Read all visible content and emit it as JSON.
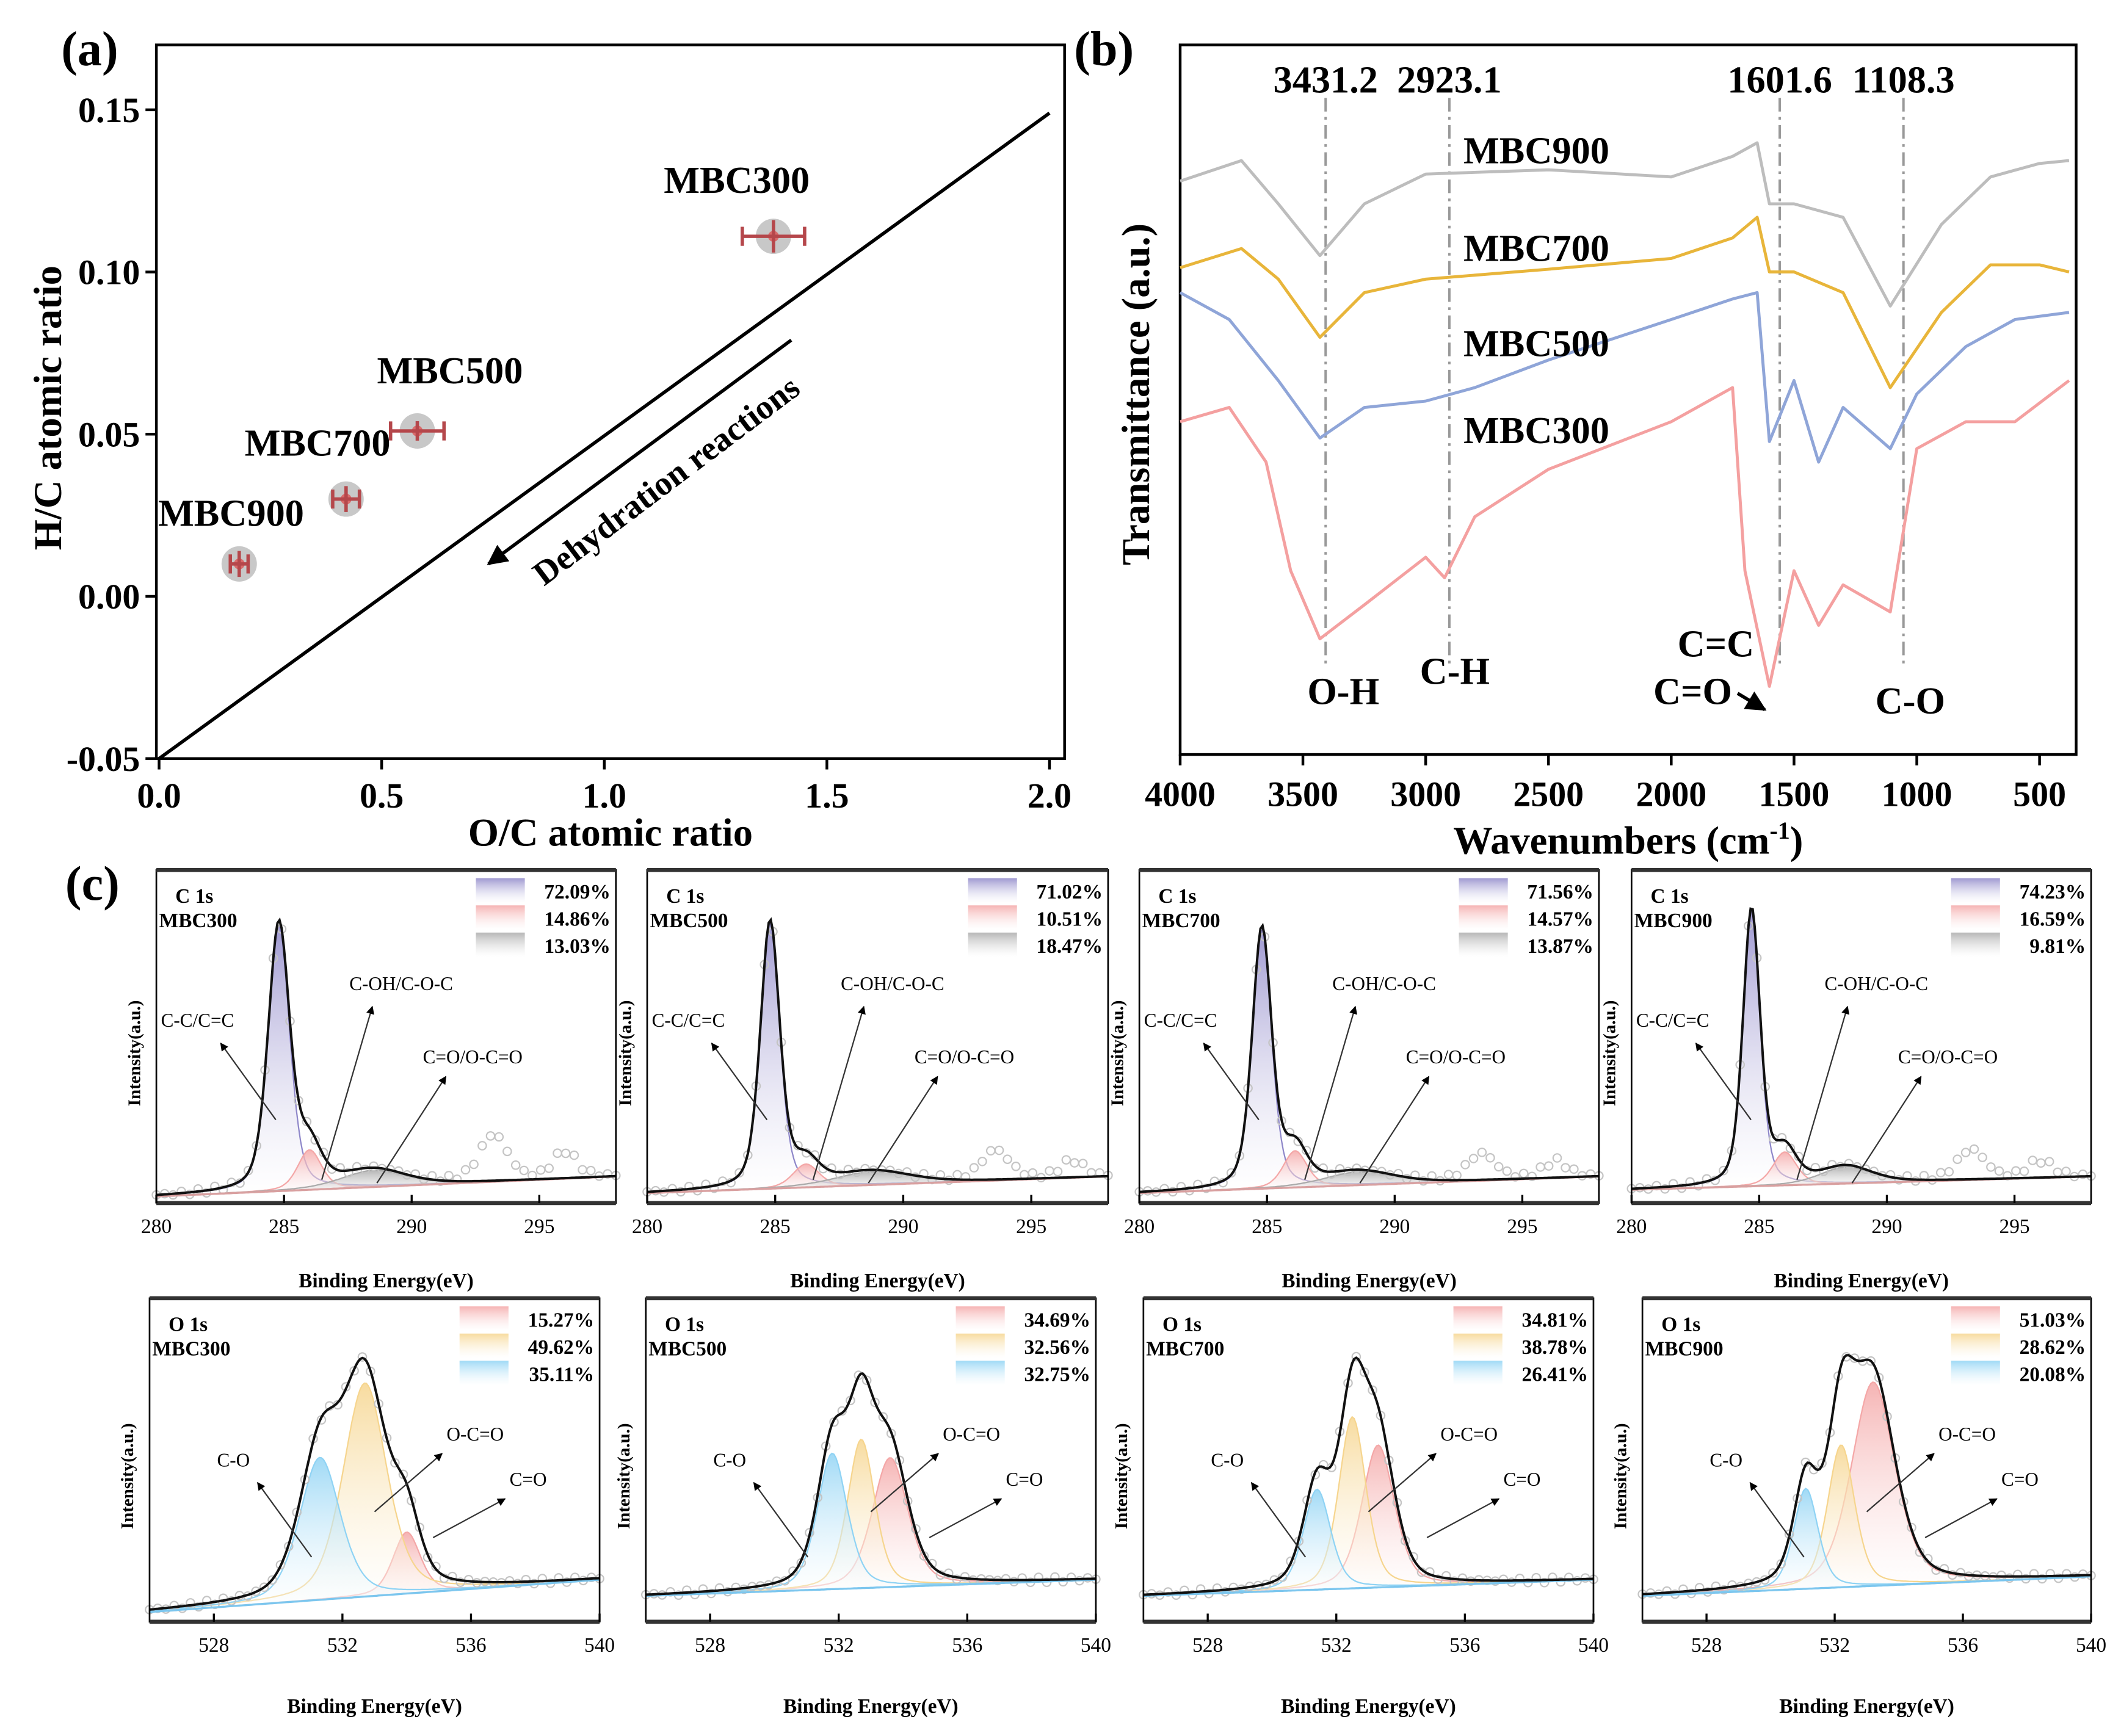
{
  "chart_data": [
    {
      "type": "scatter",
      "panel_label": "(a)",
      "xlabel": "O/C atomic ratio",
      "ylabel": "H/C atomic ratio",
      "xlim": [
        0,
        2.04
      ],
      "ylim": [
        -0.05,
        0.17
      ],
      "xticks": [
        0,
        0.5,
        1.0,
        1.5,
        2.0
      ],
      "xtick_labels": [
        "0.0",
        "0.5",
        "1.0",
        "1.5",
        "2.0"
      ],
      "yticks": [
        -0.05,
        0,
        0.05,
        0.1,
        0.15
      ],
      "ytick_labels": [
        "-0.05",
        "0.00",
        "0.05",
        "0.10",
        "0.15"
      ],
      "points": [
        {
          "label": "MBC300",
          "x": 1.38,
          "y": 0.111,
          "xerr": 0.07,
          "yerr": 0.005
        },
        {
          "label": "MBC500",
          "x": 0.58,
          "y": 0.051,
          "xerr": 0.06,
          "yerr": 0.003
        },
        {
          "label": "MBC700",
          "x": 0.42,
          "y": 0.03,
          "xerr": 0.03,
          "yerr": 0.004
        },
        {
          "label": "MBC900",
          "x": 0.18,
          "y": 0.01,
          "xerr": 0.02,
          "yerr": 0.004
        }
      ],
      "reference_line": [
        [
          0,
          -0.05
        ],
        [
          2.0,
          0.149
        ]
      ],
      "arrow": {
        "from": [
          1.42,
          0.079
        ],
        "to": [
          0.74,
          0.01
        ],
        "text": "Dehydration reactions"
      },
      "colors": {
        "marker": "#c8c8c8",
        "center": "#d96b6b",
        "errorbar": "#b5474b"
      }
    },
    {
      "type": "line",
      "panel_label": "(b)",
      "xlabel": "Wavenumbers (cm",
      "xlabel_sup": "-1",
      "xlabel_end": ")",
      "ylabel": "Transmittance (a.u.)",
      "xlim": [
        4000,
        350
      ],
      "ylim": [
        0,
        100
      ],
      "xticks": [
        4000,
        3500,
        3000,
        2500,
        2000,
        1500,
        1000,
        500
      ],
      "xtick_labels": [
        "4000",
        "3500",
        "3000",
        "2500",
        "2000",
        "1500",
        "1000",
        "500"
      ],
      "peaks": [
        {
          "x": 3431.2,
          "label": "3431.2"
        },
        {
          "x": 2923.1,
          "label": "2923.1"
        },
        {
          "x": 1601.6,
          "label": "1601.6"
        },
        {
          "x": 1108.3,
          "label": "1108.3"
        }
      ],
      "bond_labels": [
        "O-H",
        "C-H",
        "C=C",
        "C=O",
        "C-O"
      ],
      "series": [
        {
          "name": "MBC900",
          "color": "#bdbdbd",
          "x": [
            4000,
            3750,
            3600,
            3431,
            3250,
            3000,
            2500,
            2000,
            1750,
            1650,
            1600,
            1500,
            1300,
            1108,
            900,
            700,
            500,
            380
          ],
          "y": [
            80.8,
            83.7,
            77.6,
            70.3,
            77.6,
            81.8,
            82.4,
            81.4,
            84.3,
            86.2,
            77.6,
            77.6,
            75.7,
            63.2,
            74.7,
            81.4,
            83.3,
            83.7
          ]
        },
        {
          "name": "MBC700",
          "color": "#e8b53a",
          "x": [
            4000,
            3750,
            3600,
            3431,
            3250,
            3000,
            2500,
            2000,
            1750,
            1650,
            1600,
            1500,
            1300,
            1108,
            900,
            700,
            500,
            380
          ],
          "y": [
            68.6,
            71.3,
            67.0,
            58.8,
            65.1,
            67.0,
            68.4,
            69.9,
            72.8,
            75.7,
            68.0,
            68.0,
            65.1,
            51.7,
            62.3,
            69.0,
            69.0,
            68.0
          ]
        },
        {
          "name": "MBC500",
          "color": "#8fa5d8",
          "x": [
            4000,
            3800,
            3600,
            3431,
            3250,
            3000,
            2800,
            2500,
            2000,
            1750,
            1650,
            1600,
            1500,
            1400,
            1300,
            1108,
            1000,
            800,
            600,
            380
          ],
          "y": [
            65.1,
            61.3,
            52.7,
            44.6,
            48.9,
            49.8,
            51.7,
            55.6,
            61.3,
            64.2,
            65.1,
            44.1,
            52.7,
            41.2,
            48.9,
            43.1,
            50.8,
            57.5,
            61.3,
            62.3
          ]
        },
        {
          "name": "MBC300",
          "color": "#f4a0a0",
          "x": [
            4000,
            3800,
            3650,
            3550,
            3431,
            3250,
            3000,
            2923,
            2800,
            2500,
            2000,
            1750,
            1700,
            1600,
            1500,
            1400,
            1300,
            1108,
            1000,
            800,
            600,
            380
          ],
          "y": [
            46.9,
            48.9,
            41.2,
            25.9,
            16.3,
            21.1,
            27.8,
            24.9,
            33.5,
            40.2,
            46.9,
            51.7,
            25.9,
            9.6,
            25.9,
            18.2,
            23.9,
            20.1,
            43.1,
            46.9,
            46.9,
            52.7
          ]
        }
      ]
    },
    {
      "type": "line",
      "panel_label": "(c)",
      "title": "C 1s",
      "sample": "MBC300",
      "xlabel": "Binding Energy(eV)",
      "ylabel": "Intensity(a.u.)",
      "xlim": [
        280,
        298
      ],
      "xticks": [
        280,
        285,
        290,
        295
      ],
      "xtick_labels": [
        "280",
        "285",
        "290",
        "295"
      ],
      "ylim": [
        0,
        1
      ],
      "baseline": [
        0.02,
        0.08
      ],
      "components": [
        {
          "label": "C-C/C=C",
          "center": 284.8,
          "fwhm": 1.0,
          "height": 0.8,
          "color": "#8e87c9",
          "percent": "72.09%"
        },
        {
          "label": "C-OH/C-O-C",
          "center": 286.0,
          "fwhm": 1.1,
          "height": 0.12,
          "color": "#f4a7a7",
          "percent": "14.86%"
        },
        {
          "label": "C=O/O-C=O",
          "center": 288.5,
          "fwhm": 3.0,
          "height": 0.05,
          "color": "#aaaaaa",
          "percent": "13.03%"
        }
      ],
      "satellites": [
        {
          "center": 293.2,
          "fwhm": 1.3,
          "height": 0.14
        },
        {
          "center": 296.0,
          "fwhm": 1.1,
          "height": 0.08
        }
      ]
    },
    {
      "type": "line",
      "title": "C 1s",
      "sample": "MBC500",
      "xlabel": "Binding Energy(eV)",
      "ylabel": "Intensity(a.u.)",
      "xlim": [
        280,
        298
      ],
      "xticks": [
        280,
        285,
        290,
        295
      ],
      "xtick_labels": [
        "280",
        "285",
        "290",
        "295"
      ],
      "ylim": [
        0,
        1
      ],
      "baseline": [
        0.03,
        0.08
      ],
      "components": [
        {
          "label": "C-C/C=C",
          "center": 284.8,
          "fwhm": 0.9,
          "height": 0.8,
          "color": "#8e87c9",
          "percent": "71.02%"
        },
        {
          "label": "C-OH/C-O-C",
          "center": 286.2,
          "fwhm": 1.2,
          "height": 0.07,
          "color": "#f4a7a7",
          "percent": "10.51%"
        },
        {
          "label": "C=O/O-C=O",
          "center": 288.8,
          "fwhm": 3.5,
          "height": 0.04,
          "color": "#aaaaaa",
          "percent": "18.47%"
        }
      ],
      "satellites": [
        {
          "center": 293.6,
          "fwhm": 1.3,
          "height": 0.09
        },
        {
          "center": 296.6,
          "fwhm": 1.1,
          "height": 0.05
        }
      ]
    },
    {
      "type": "line",
      "title": "C 1s",
      "sample": "MBC700",
      "xlabel": "Binding Energy(eV)",
      "ylabel": "Intensity(a.u.)",
      "xlim": [
        280,
        298
      ],
      "xticks": [
        280,
        285,
        290,
        295
      ],
      "xtick_labels": [
        "280",
        "285",
        "290",
        "295"
      ],
      "ylim": [
        0,
        1
      ],
      "baseline": [
        0.03,
        0.08
      ],
      "components": [
        {
          "label": "C-C/C=C",
          "center": 284.8,
          "fwhm": 0.9,
          "height": 0.78,
          "color": "#8e87c9",
          "percent": "71.56%"
        },
        {
          "label": "C-OH/C-O-C",
          "center": 286.1,
          "fwhm": 1.1,
          "height": 0.11,
          "color": "#f4a7a7",
          "percent": "14.57%"
        },
        {
          "label": "C=O/O-C=O",
          "center": 288.6,
          "fwhm": 3.2,
          "height": 0.04,
          "color": "#aaaaaa",
          "percent": "13.87%"
        }
      ],
      "satellites": [
        {
          "center": 293.4,
          "fwhm": 1.3,
          "height": 0.08
        },
        {
          "center": 296.3,
          "fwhm": 1.1,
          "height": 0.05
        }
      ]
    },
    {
      "type": "line",
      "title": "C 1s",
      "sample": "MBC900",
      "xlabel": "Binding Energy(eV)",
      "ylabel": "Intensity(a.u.)",
      "xlim": [
        280,
        298
      ],
      "xticks": [
        280,
        285,
        290,
        295
      ],
      "xtick_labels": [
        "280",
        "285",
        "290",
        "295"
      ],
      "ylim": [
        0,
        1
      ],
      "baseline": [
        0.04,
        0.08
      ],
      "components": [
        {
          "label": "C-C/C=C",
          "center": 284.7,
          "fwhm": 0.8,
          "height": 0.83,
          "color": "#8e87c9",
          "percent": "74.23%"
        },
        {
          "label": "C-OH/C-O-C",
          "center": 286.0,
          "fwhm": 1.1,
          "height": 0.1,
          "color": "#f4a7a7",
          "percent": "16.59%"
        },
        {
          "label": "C=O/O-C=O",
          "center": 288.4,
          "fwhm": 2.4,
          "height": 0.05,
          "color": "#aaaaaa",
          "percent": "9.81%"
        }
      ],
      "satellites": [
        {
          "center": 293.3,
          "fwhm": 1.3,
          "height": 0.09
        },
        {
          "center": 296.0,
          "fwhm": 1.2,
          "height": 0.05
        }
      ]
    },
    {
      "type": "line",
      "title": "O 1s",
      "sample": "MBC300",
      "xlabel": "Binding Energy(eV)",
      "ylabel": "Intensity(a.u.)",
      "xlim": [
        526,
        540
      ],
      "xticks": [
        528,
        532,
        536,
        540
      ],
      "xtick_labels": [
        "528",
        "532",
        "536",
        "540"
      ],
      "ylim": [
        0,
        1
      ],
      "baseline": [
        0.03,
        0.13
      ],
      "components": [
        {
          "label": "C=O",
          "center": 534.0,
          "fwhm": 1.0,
          "height": 0.19,
          "color": "#f4a7a7",
          "percent": "15.27%"
        },
        {
          "label": "O-C=O",
          "center": 532.7,
          "fwhm": 1.6,
          "height": 0.66,
          "color": "#f6d58e",
          "percent": "49.62%"
        },
        {
          "label": "C-O",
          "center": 531.3,
          "fwhm": 1.5,
          "height": 0.44,
          "color": "#8fd3f4",
          "percent": "35.11%"
        }
      ]
    },
    {
      "type": "line",
      "title": "O 1s",
      "sample": "MBC500",
      "xlabel": "Binding Energy(eV)",
      "ylabel": "Intensity(a.u.)",
      "xlim": [
        526,
        540
      ],
      "xticks": [
        528,
        532,
        536,
        540
      ],
      "xtick_labels": [
        "528",
        "532",
        "536",
        "540"
      ],
      "ylim": [
        0,
        1
      ],
      "baseline": [
        0.08,
        0.13
      ],
      "components": [
        {
          "label": "C=O",
          "center": 533.6,
          "fwhm": 1.3,
          "height": 0.4,
          "color": "#f4a7a7",
          "percent": "34.69%"
        },
        {
          "label": "O-C=O",
          "center": 532.7,
          "fwhm": 1.0,
          "height": 0.46,
          "color": "#f6d58e",
          "percent": "32.56%"
        },
        {
          "label": "C-O",
          "center": 531.8,
          "fwhm": 1.1,
          "height": 0.42,
          "color": "#8fd3f4",
          "percent": "32.75%"
        }
      ]
    },
    {
      "type": "line",
      "title": "O 1s",
      "sample": "MBC700",
      "xlabel": "Binding Energy(eV)",
      "ylabel": "Intensity(a.u.)",
      "xlim": [
        526,
        540
      ],
      "xticks": [
        528,
        532,
        536,
        540
      ],
      "xtick_labels": [
        "528",
        "532",
        "536",
        "540"
      ],
      "ylim": [
        0,
        1
      ],
      "baseline": [
        0.08,
        0.13
      ],
      "components": [
        {
          "label": "C=O",
          "center": 533.3,
          "fwhm": 1.2,
          "height": 0.44,
          "color": "#f4a7a7",
          "percent": "34.81%"
        },
        {
          "label": "O-C=O",
          "center": 532.5,
          "fwhm": 1.0,
          "height": 0.53,
          "color": "#f6d58e",
          "percent": "38.78%"
        },
        {
          "label": "C-O",
          "center": 531.4,
          "fwhm": 1.0,
          "height": 0.31,
          "color": "#8fd3f4",
          "percent": "26.41%"
        }
      ]
    },
    {
      "type": "line",
      "title": "O 1s",
      "sample": "MBC900",
      "xlabel": "Binding Energy(eV)",
      "ylabel": "Intensity(a.u.)",
      "xlim": [
        526,
        540
      ],
      "xticks": [
        528,
        532,
        536,
        540
      ],
      "xtick_labels": [
        "528",
        "532",
        "536",
        "540"
      ],
      "ylim": [
        0,
        1
      ],
      "baseline": [
        0.08,
        0.14
      ],
      "components": [
        {
          "label": "C=O",
          "center": 533.2,
          "fwhm": 1.6,
          "height": 0.63,
          "color": "#f4a7a7",
          "percent": "51.03%"
        },
        {
          "label": "O-C=O",
          "center": 532.2,
          "fwhm": 1.0,
          "height": 0.44,
          "color": "#f6d58e",
          "percent": "28.62%"
        },
        {
          "label": "C-O",
          "center": 531.1,
          "fwhm": 0.9,
          "height": 0.31,
          "color": "#8fd3f4",
          "percent": "20.08%"
        }
      ]
    }
  ]
}
